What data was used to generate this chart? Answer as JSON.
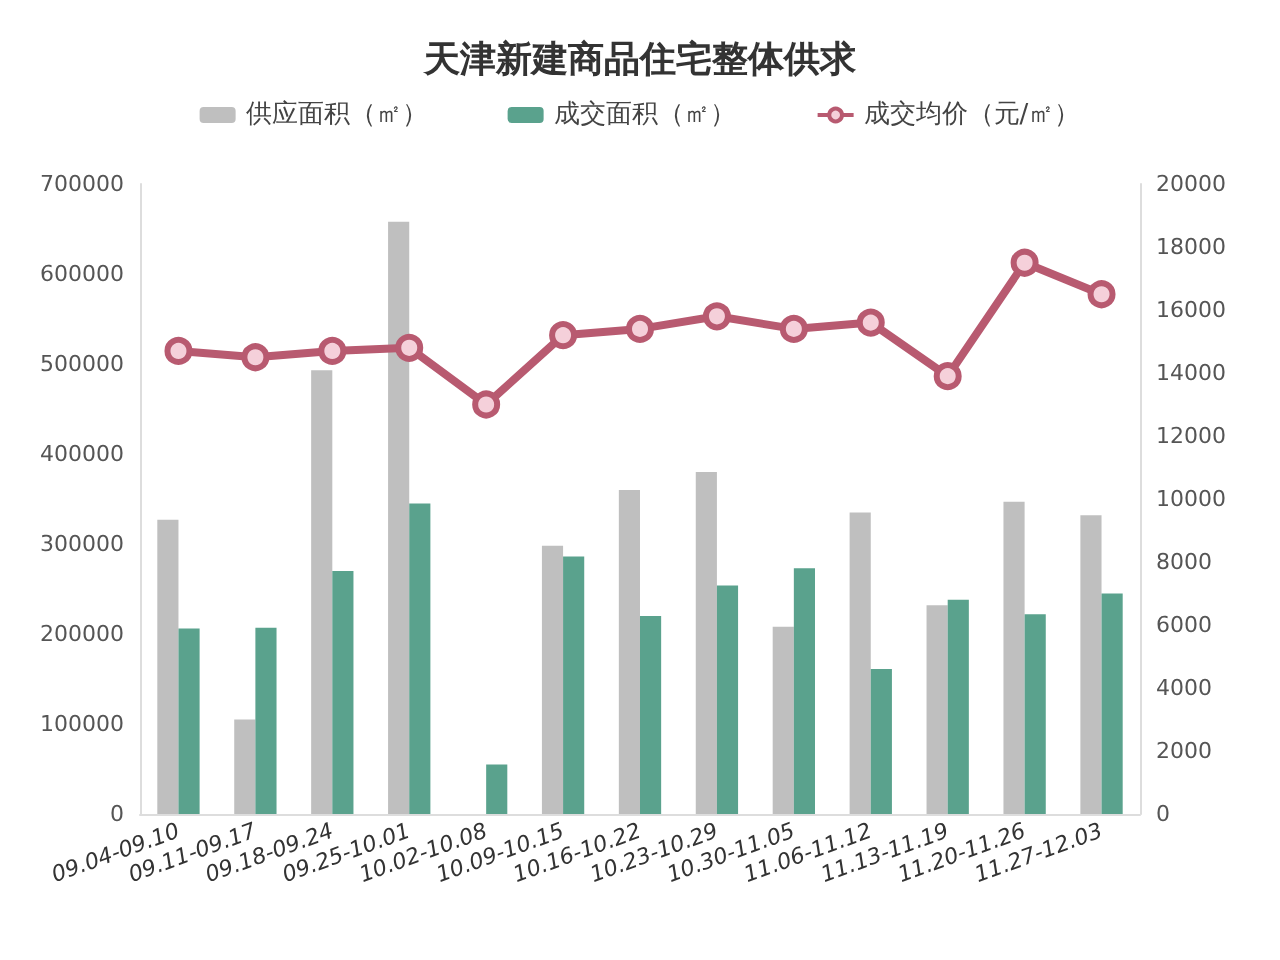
{
  "chart_data": {
    "type": "bar",
    "title": "天津新建商品住宅整体供求",
    "categories": [
      "09.04-09.10",
      "09.11-09.17",
      "09.18-09.24",
      "09.25-10.01",
      "10.02-10.08",
      "10.09-10.15",
      "10.16-10.22",
      "10.23-10.29",
      "10.30-11.05",
      "11.06-11.12",
      "11.13-11.19",
      "11.20-11.26",
      "11.27-12.03"
    ],
    "series": [
      {
        "name": "供应面积（㎡）",
        "color": "#bfbfbf",
        "values": [
          327000,
          105000,
          493000,
          658000,
          null,
          298000,
          360000,
          380000,
          208000,
          335000,
          232000,
          347000,
          332000
        ]
      },
      {
        "name": "成交面积（㎡）",
        "color": "#5aa28d",
        "values": [
          206000,
          207000,
          270000,
          345000,
          55000,
          286000,
          220000,
          254000,
          273000,
          161000,
          238000,
          222000,
          245000
        ]
      },
      {
        "name": "成交均价（元/㎡）",
        "type": "line",
        "axis": "y2",
        "color": "#b85a70",
        "values": [
          14700,
          14500,
          14700,
          14800,
          13000,
          15200,
          15400,
          15800,
          15400,
          15600,
          13900,
          17500,
          16500
        ]
      }
    ],
    "ylim": [
      0,
      700000
    ],
    "yticks": [
      0,
      100000,
      200000,
      300000,
      400000,
      500000,
      600000,
      700000
    ],
    "y2lim": [
      0,
      20000
    ],
    "y2ticks": [
      0,
      2000,
      4000,
      6000,
      8000,
      10000,
      12000,
      14000,
      16000,
      18000,
      20000
    ],
    "marker": "circle",
    "legend": "top",
    "grid": false
  }
}
